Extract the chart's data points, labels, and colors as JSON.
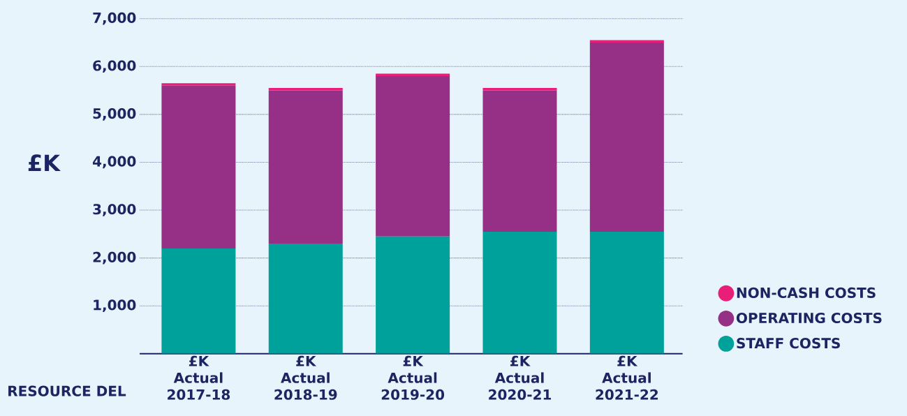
{
  "chart_data": {
    "type": "bar",
    "stacked": true,
    "ylabel": "£K",
    "xlabel": "RESOURCE DEL",
    "categories": [
      "£K Actual 2017-18",
      "£K Actual 2018-19",
      "£K Actual 2019-20",
      "£K Actual 2020-21",
      "£K Actual 2021-22"
    ],
    "series": [
      {
        "name": "STAFF COSTS",
        "color": "#00a19a",
        "values": [
          2200,
          2300,
          2450,
          2550,
          2550
        ]
      },
      {
        "name": "OPERATING COSTS",
        "color": "#953086",
        "values": [
          3400,
          3200,
          3350,
          2950,
          3950
        ]
      },
      {
        "name": "NON-CASH COSTS",
        "color": "#e91e78",
        "values": [
          50,
          50,
          50,
          50,
          50
        ]
      }
    ],
    "ylim": [
      0,
      7000
    ],
    "yticks": [
      {
        "value": 1000,
        "label": "1,000"
      },
      {
        "value": 2000,
        "label": "2,000"
      },
      {
        "value": 3000,
        "label": "3,000"
      },
      {
        "value": 4000,
        "label": "4,000"
      },
      {
        "value": 5000,
        "label": "5,000"
      },
      {
        "value": 6000,
        "label": "6,000"
      },
      {
        "value": 7000,
        "label": "7,000"
      }
    ],
    "grid": "y",
    "legend": "right"
  }
}
